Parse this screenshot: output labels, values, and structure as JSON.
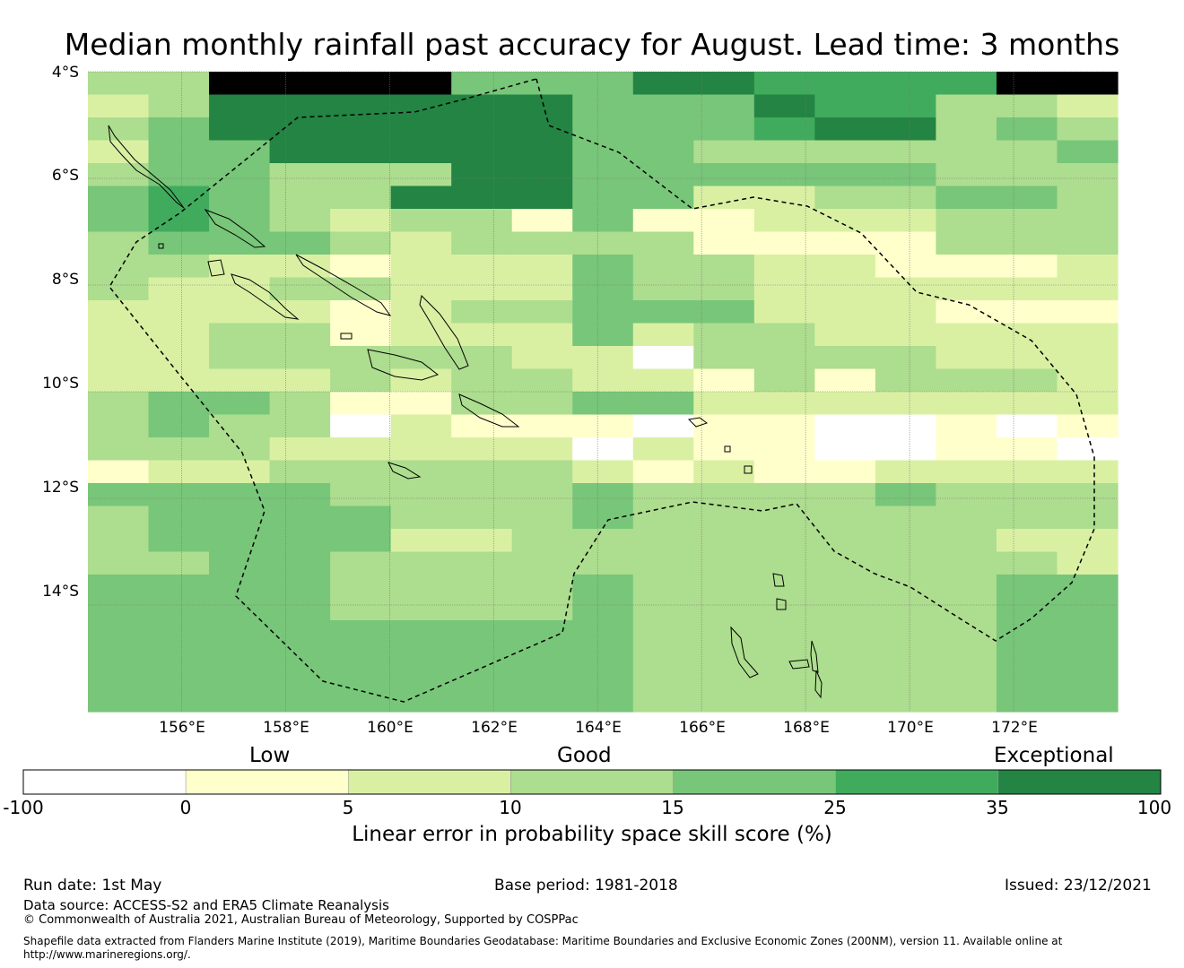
{
  "title": "Median monthly rainfall past accuracy for August. Lead time: 3 months",
  "map": {
    "lat_labels": [
      "4°S",
      "6°S",
      "8°S",
      "10°S",
      "12°S",
      "14°S"
    ],
    "lon_labels": [
      "156°E",
      "158°E",
      "160°E",
      "162°E",
      "164°E",
      "166°E",
      "168°E",
      "170°E",
      "172°E"
    ],
    "lat_range": [
      -16.0,
      -4.0
    ],
    "lon_range": [
      154.2,
      174.0
    ],
    "grid_lines": true,
    "cell_size_deg": 0.833,
    "boundary_style": "dashed",
    "category_grid": [
      "33777744466555577",
      "23666666444655332",
      "34666666444566343",
      "24466666443333334",
      "34433366444444333",
      "45433666442233443",
      "45432331411222333",
      "34443233331111333",
      "33221222433221112",
      "32233222433222222",
      "22221233444222111",
      "22331222423322222",
      "22333332203333222",
      "22223233221313332",
      "34431133442222222",
      "34330211101100101",
      "33322222021100110",
      "12233333212112222",
      "44443333433334333",
      "34444333433333333",
      "34444223333333322",
      "33443333333333332",
      "44443333433333344",
      "44443333433333344",
      "44444444433333344",
      "44444444433333344",
      "44444444433333344",
      "44444444433333344"
    ]
  },
  "colorbar": {
    "category_labels": [
      "Low",
      "Good",
      "Exceptional"
    ],
    "ticks": [
      "-100",
      "0",
      "5",
      "10",
      "15",
      "25",
      "35",
      "100"
    ],
    "colors": [
      "#ffffff",
      "#ffffcc",
      "#d9f0a3",
      "#addd8e",
      "#78c679",
      "#41ab5d",
      "#238443"
    ],
    "title": "Linear error in probability space skill score (%)"
  },
  "footer": {
    "run_date": "Run date: 1st May",
    "base_period": "Base period: 1981-2018",
    "issued": "Issued: 23/12/2021",
    "data_source": "Data source: ACCESS-S2 and ERA5 Climate Reanalysis",
    "copyright": "© Commonwealth of Australia 2021, Australian Bureau of Meteorology, Supported by COSPPac",
    "shapefile": "Shapefile data extracted from Flanders Marine Institute (2019), Maritime Boundaries Geodatabase: Maritime Boundaries and Exclusive Economic Zones (200NM), version 11. Available online at http://www.marineregions.org/."
  }
}
